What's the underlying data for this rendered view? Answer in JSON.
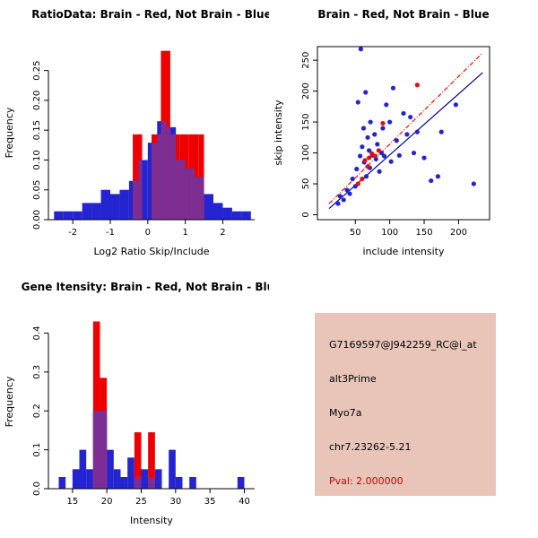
{
  "background": "#FFFFFF",
  "chart_data": [
    {
      "type": "bar",
      "subtype": "overlaid-histogram",
      "title": "RatioData: Brain - Red, Not Brain - Blue",
      "xlabel": "Log2 Ratio Skip/Include",
      "ylabel": "Frequency",
      "xlim": [
        -2.65,
        2.85
      ],
      "ylim": [
        0,
        0.29
      ],
      "xticks": [
        -2,
        -1,
        0,
        1,
        2
      ],
      "xtick_labels": [
        "-2",
        "-1",
        "0",
        "1",
        "2"
      ],
      "yticks": [
        0,
        0.05,
        0.1,
        0.15,
        0.2,
        0.25
      ],
      "ytick_labels": [
        "0.00",
        "0.05",
        "0.10",
        "0.15",
        "0.20",
        "0.25"
      ],
      "grid": false,
      "legend": "none (colors in title)",
      "overlap_color": "#7C2E94",
      "series": [
        {
          "name": "Not Brain",
          "color": "#2424D0",
          "bars": [
            [
              -2.5,
              -2.25,
              0.014
            ],
            [
              -2.25,
              -2.0,
              0.014
            ],
            [
              -2.0,
              -1.75,
              0.014
            ],
            [
              -1.75,
              -1.5,
              0.028
            ],
            [
              -1.5,
              -1.25,
              0.028
            ],
            [
              -1.25,
              -1.0,
              0.05
            ],
            [
              -1.0,
              -0.75,
              0.043
            ],
            [
              -0.75,
              -0.5,
              0.05
            ],
            [
              -0.5,
              -0.25,
              0.065
            ],
            [
              -0.25,
              0.0,
              0.1
            ],
            [
              0.0,
              0.25,
              0.129
            ],
            [
              0.25,
              0.5,
              0.165
            ],
            [
              0.5,
              0.75,
              0.155
            ],
            [
              0.75,
              1.0,
              0.1
            ],
            [
              1.0,
              1.25,
              0.086
            ],
            [
              1.25,
              1.5,
              0.072
            ],
            [
              1.5,
              1.75,
              0.043
            ],
            [
              1.75,
              2.0,
              0.028
            ],
            [
              2.0,
              2.25,
              0.02
            ],
            [
              2.25,
              2.5,
              0.014
            ],
            [
              2.5,
              2.75,
              0.014
            ]
          ]
        },
        {
          "name": "Brain",
          "color": "#EE0000",
          "bars": [
            [
              -0.4,
              -0.15,
              0.143
            ],
            [
              0.1,
              0.35,
              0.143
            ],
            [
              0.35,
              0.6,
              0.283
            ],
            [
              0.6,
              0.85,
              0.143
            ],
            [
              0.85,
              1.1,
              0.143
            ],
            [
              1.1,
              1.35,
              0.143
            ],
            [
              1.35,
              1.5,
              0.143
            ]
          ]
        }
      ]
    },
    {
      "type": "scatter",
      "title": "Brain - Red, Not Brain - Blue",
      "xlabel": "include intensity",
      "ylabel": "skip intensity",
      "xlim": [
        -5,
        245
      ],
      "ylim": [
        -8,
        272
      ],
      "xticks": [
        50,
        100,
        150,
        200
      ],
      "xtick_labels": [
        "50",
        "100",
        "150",
        "200"
      ],
      "yticks": [
        0,
        50,
        100,
        150,
        200,
        250
      ],
      "ytick_labels": [
        "0",
        "50",
        "100",
        "150",
        "200",
        "250"
      ],
      "grid": false,
      "boxed": true,
      "series": [
        {
          "name": "Not Brain",
          "color": "#2424D0",
          "points": [
            [
              25,
              18
            ],
            [
              28,
              30
            ],
            [
              33,
              24
            ],
            [
              38,
              40
            ],
            [
              42,
              34
            ],
            [
              46,
              58
            ],
            [
              50,
              46
            ],
            [
              52,
              74
            ],
            [
              54,
              182
            ],
            [
              57,
              95
            ],
            [
              58,
              268
            ],
            [
              60,
              110
            ],
            [
              62,
              140
            ],
            [
              63,
              85
            ],
            [
              65,
              198
            ],
            [
              66,
              62
            ],
            [
              68,
              125
            ],
            [
              70,
              104
            ],
            [
              71,
              76
            ],
            [
              72,
              150
            ],
            [
              75,
              96
            ],
            [
              78,
              130
            ],
            [
              80,
              90
            ],
            [
              82,
              114
            ],
            [
              85,
              70
            ],
            [
              88,
              100
            ],
            [
              90,
              140
            ],
            [
              92,
              95
            ],
            [
              95,
              178
            ],
            [
              100,
              150
            ],
            [
              102,
              86
            ],
            [
              105,
              205
            ],
            [
              110,
              120
            ],
            [
              114,
              96
            ],
            [
              120,
              164
            ],
            [
              125,
              130
            ],
            [
              130,
              158
            ],
            [
              135,
              100
            ],
            [
              140,
              134
            ],
            [
              150,
              92
            ],
            [
              160,
              55
            ],
            [
              170,
              62
            ],
            [
              175,
              134
            ],
            [
              196,
              178
            ],
            [
              222,
              50
            ]
          ]
        },
        {
          "name": "Brain",
          "color": "#E01010",
          "points": [
            [
              54,
              50
            ],
            [
              60,
              58
            ],
            [
              64,
              88
            ],
            [
              68,
              78
            ],
            [
              70,
              92
            ],
            [
              74,
              99
            ],
            [
              79,
              95
            ],
            [
              84,
              104
            ],
            [
              90,
              148
            ],
            [
              140,
              210
            ]
          ]
        }
      ],
      "lines": [
        {
          "name": "brain-fit-line",
          "color": "#FF0000",
          "dash": "5,2,1,2",
          "x1": 12,
          "y1": 18,
          "x2": 235,
          "y2": 262
        },
        {
          "name": "notbrain-fit-line",
          "color": "#00008B",
          "dash": "",
          "x1": 12,
          "y1": 10,
          "x2": 235,
          "y2": 230
        }
      ]
    },
    {
      "type": "bar",
      "subtype": "overlaid-histogram",
      "title": "Gene Itensity: Brain - Red, Not Brain - Blue",
      "xlabel": "Intensity",
      "ylabel": "Frequency",
      "xlim": [
        11.5,
        41.5
      ],
      "ylim": [
        0,
        0.445
      ],
      "xticks": [
        15,
        20,
        25,
        30,
        35,
        40
      ],
      "xtick_labels": [
        "15",
        "20",
        "25",
        "30",
        "35",
        "40"
      ],
      "yticks": [
        0,
        0.1,
        0.2,
        0.3,
        0.4
      ],
      "ytick_labels": [
        "0.0",
        "0.1",
        "0.2",
        "0.3",
        "0.4"
      ],
      "grid": false,
      "legend": "none (colors in title)",
      "overlap_color": "#7C2E94",
      "series": [
        {
          "name": "Not Brain",
          "color": "#2424D0",
          "bars": [
            [
              13,
              14,
              0.03
            ],
            [
              15,
              16,
              0.05
            ],
            [
              16,
              17,
              0.1
            ],
            [
              17,
              18,
              0.05
            ],
            [
              18,
              19,
              0.2
            ],
            [
              19,
              20,
              0.2
            ],
            [
              20,
              21,
              0.1
            ],
            [
              21,
              22,
              0.05
            ],
            [
              22,
              23,
              0.03
            ],
            [
              23,
              24,
              0.08
            ],
            [
              24,
              25,
              0.03
            ],
            [
              25,
              26,
              0.05
            ],
            [
              26,
              27,
              0.03
            ],
            [
              27,
              28,
              0.05
            ],
            [
              29,
              30,
              0.1
            ],
            [
              30,
              31,
              0.03
            ],
            [
              32,
              33,
              0.03
            ],
            [
              39,
              40,
              0.03
            ]
          ]
        },
        {
          "name": "Brain",
          "color": "#EE0000",
          "bars": [
            [
              18,
              19,
              0.43
            ],
            [
              19,
              20,
              0.285
            ],
            [
              24,
              25,
              0.145
            ],
            [
              26,
              27,
              0.145
            ]
          ]
        }
      ]
    }
  ],
  "info_box": {
    "bg": "#E8C5B8",
    "pval_color": "#CC0000",
    "lines": [
      {
        "text": "G7169597@J942259_RC@i_at",
        "color": "#000000"
      },
      {
        "text": "alt3Prime",
        "color": "#000000"
      },
      {
        "text": "Myo7a",
        "color": "#000000"
      },
      {
        "text": "chr7.23262-5.21",
        "color": "#000000"
      },
      {
        "text": "Pval: 2.000000",
        "color": "#CC0000"
      }
    ]
  }
}
